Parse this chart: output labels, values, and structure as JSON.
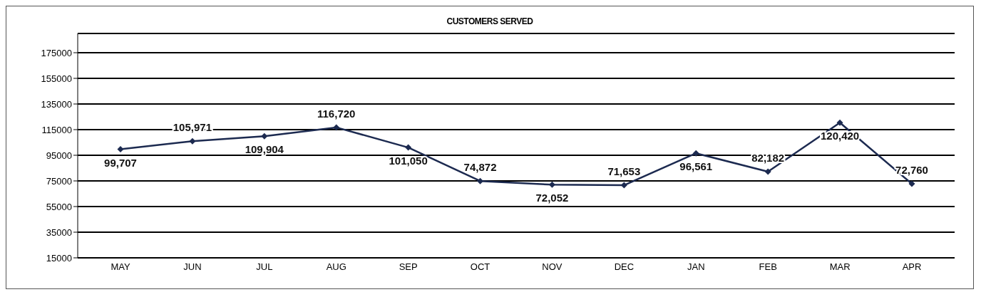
{
  "chart_data": {
    "type": "line",
    "title": "CUSTOMERS SERVED",
    "categories": [
      "MAY",
      "JUN",
      "JUL",
      "AUG",
      "SEP",
      "OCT",
      "NOV",
      "DEC",
      "JAN",
      "FEB",
      "MAR",
      "APR"
    ],
    "series": [
      {
        "color": "#1c2a50",
        "values": [
          99707,
          105971,
          109904,
          116720,
          101050,
          74872,
          72052,
          71653,
          96561,
          82182,
          120420,
          72760
        ],
        "value_labels": [
          "99,707",
          "105,971",
          "109,904",
          "116,720",
          "101,050",
          "74,872",
          "72,052",
          "71,653",
          "96,561",
          "82,182",
          "120,420",
          "72,760"
        ]
      }
    ],
    "ylim": [
      15000,
      190000
    ],
    "yticks": [
      15000,
      35000,
      55000,
      75000,
      95000,
      115000,
      135000,
      155000,
      175000
    ],
    "grid": "y",
    "marker": "diamond",
    "line_style": "solid"
  }
}
